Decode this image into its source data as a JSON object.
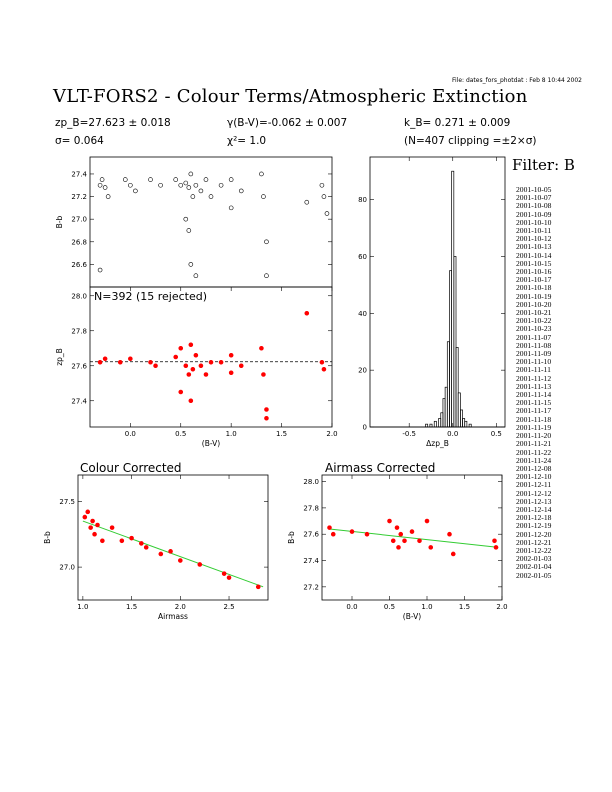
{
  "file_label": "File: dates_fors_photdat : Feb  8 10:44 2002",
  "title": "VLT-FORS2 - Colour Terms/Atmospheric Extinction",
  "header": {
    "zp": "zp_B=27.623 ± 0.018",
    "sigma": "σ= 0.064",
    "gamma": "γ(B-V)=-0.062 ± 0.007",
    "chi2": "χ²=   1.0",
    "kb": "k_B= 0.271 ± 0.009",
    "clip": "(N=407 clipping =±2×σ)"
  },
  "filter_label": "Filter: B",
  "dates": [
    "2001-10-05",
    "2001-10-07",
    "2001-10-08",
    "2001-10-09",
    "2001-10-10",
    "2001-10-11",
    "2001-10-12",
    "2001-10-13",
    "2001-10-14",
    "2001-10-15",
    "2001-10-16",
    "2001-10-17",
    "2001-10-18",
    "2001-10-19",
    "2001-10-20",
    "2001-10-21",
    "2001-10-22",
    "2001-10-23",
    "2001-11-07",
    "2001-11-08",
    "2001-11-09",
    "2001-11-10",
    "2001-11-11",
    "2001-11-12",
    "2001-11-13",
    "2001-11-14",
    "2001-11-15",
    "2001-11-17",
    "2001-11-18",
    "2001-11-19",
    "2001-11-20",
    "2001-11-21",
    "2001-11-22",
    "2001-11-24",
    "2001-12-08",
    "2001-12-10",
    "2001-12-11",
    "2001-12-12",
    "2001-12-13",
    "2001-12-14",
    "2001-12-18",
    "2001-12-19",
    "2001-12-20",
    "2001-12-21",
    "2001-12-22",
    "2002-01-03",
    "2002-01-04",
    "2002-01-05"
  ],
  "chart_data": [
    {
      "type": "scatter",
      "xlabel": "",
      "ylabel": "B-b",
      "xlim": [
        -0.4,
        2.0
      ],
      "ylim": [
        26.4,
        27.55
      ],
      "yticks": [
        26.6,
        26.8,
        27.0,
        27.2,
        27.4
      ],
      "series": [
        {
          "color": "#000000",
          "marker": "open-circle/triangle",
          "points": [
            [
              -0.3,
              27.3
            ],
            [
              -0.28,
              27.35
            ],
            [
              -0.25,
              27.28
            ],
            [
              -0.22,
              27.2
            ],
            [
              -0.3,
              26.55
            ],
            [
              -0.05,
              27.35
            ],
            [
              0.0,
              27.3
            ],
            [
              0.05,
              27.25
            ],
            [
              0.2,
              27.35
            ],
            [
              0.3,
              27.3
            ],
            [
              0.45,
              27.35
            ],
            [
              0.5,
              27.3
            ],
            [
              0.55,
              27.32
            ],
            [
              0.58,
              27.28
            ],
            [
              0.6,
              27.4
            ],
            [
              0.62,
              27.2
            ],
            [
              0.65,
              27.3
            ],
            [
              0.7,
              27.25
            ],
            [
              0.75,
              27.35
            ],
            [
              0.8,
              27.2
            ],
            [
              0.55,
              27.0
            ],
            [
              0.58,
              26.9
            ],
            [
              0.6,
              26.6
            ],
            [
              0.65,
              26.5
            ],
            [
              0.9,
              27.3
            ],
            [
              1.0,
              27.35
            ],
            [
              1.0,
              27.1
            ],
            [
              1.1,
              27.25
            ],
            [
              1.3,
              27.4
            ],
            [
              1.32,
              27.2
            ],
            [
              1.35,
              26.8
            ],
            [
              1.35,
              26.5
            ],
            [
              1.75,
              27.15
            ],
            [
              1.9,
              27.3
            ],
            [
              1.92,
              27.2
            ],
            [
              1.95,
              27.05
            ]
          ]
        }
      ]
    },
    {
      "type": "scatter",
      "label": "N=392 (15 rejected)",
      "xlabel": "(B-V)",
      "ylabel": "zp_B",
      "xlim": [
        -0.4,
        2.0
      ],
      "ylim": [
        27.25,
        28.05
      ],
      "xticks": [
        0.0,
        0.5,
        1.0,
        1.5,
        2.0
      ],
      "yticks": [
        27.4,
        27.6,
        27.8,
        28.0
      ],
      "reference_line": 27.623,
      "series": [
        {
          "color": "#ff0000",
          "points": [
            [
              -0.3,
              27.62
            ],
            [
              -0.25,
              27.64
            ],
            [
              -0.1,
              27.62
            ],
            [
              0.0,
              27.64
            ],
            [
              0.2,
              27.62
            ],
            [
              0.25,
              27.6
            ],
            [
              0.45,
              27.65
            ],
            [
              0.5,
              27.7
            ],
            [
              0.55,
              27.6
            ],
            [
              0.58,
              27.55
            ],
            [
              0.6,
              27.72
            ],
            [
              0.62,
              27.58
            ],
            [
              0.65,
              27.66
            ],
            [
              0.7,
              27.6
            ],
            [
              0.75,
              27.55
            ],
            [
              0.8,
              27.62
            ],
            [
              0.5,
              27.45
            ],
            [
              0.6,
              27.4
            ],
            [
              0.9,
              27.62
            ],
            [
              1.0,
              27.66
            ],
            [
              1.0,
              27.56
            ],
            [
              1.1,
              27.6
            ],
            [
              1.3,
              27.7
            ],
            [
              1.32,
              27.55
            ],
            [
              1.35,
              27.35
            ],
            [
              1.35,
              27.3
            ],
            [
              1.75,
              27.9
            ],
            [
              1.9,
              27.62
            ],
            [
              1.92,
              27.58
            ]
          ]
        }
      ]
    },
    {
      "type": "bar",
      "xlabel": "Δzp_B",
      "ylabel": "",
      "xlim": [
        -0.95,
        0.6
      ],
      "ylim": [
        0,
        95
      ],
      "xticks": [
        -0.5,
        0.0,
        0.5
      ],
      "yticks": [
        0,
        20,
        40,
        60,
        80
      ],
      "bin_centers": [
        -0.3,
        -0.25,
        -0.2,
        -0.15,
        -0.125,
        -0.1,
        -0.075,
        -0.05,
        -0.025,
        0.0,
        0.025,
        0.05,
        0.075,
        0.1,
        0.125,
        0.15,
        0.2
      ],
      "values": [
        1,
        1,
        2,
        3,
        5,
        10,
        14,
        30,
        55,
        90,
        60,
        28,
        12,
        6,
        3,
        2,
        1
      ]
    },
    {
      "type": "scatter",
      "title": "Colour Corrected",
      "xlabel": "Airmass",
      "ylabel": "B-b",
      "xlim": [
        0.95,
        2.9
      ],
      "ylim": [
        26.75,
        27.7
      ],
      "xticks": [
        1.0,
        1.5,
        2.0,
        2.5
      ],
      "yticks": [
        27.0,
        27.5
      ],
      "fit": [
        [
          1.0,
          27.35
        ],
        [
          2.85,
          26.85
        ]
      ],
      "series": [
        {
          "color": "#ff0000",
          "points": [
            [
              1.02,
              27.38
            ],
            [
              1.05,
              27.42
            ],
            [
              1.08,
              27.3
            ],
            [
              1.1,
              27.35
            ],
            [
              1.12,
              27.25
            ],
            [
              1.15,
              27.32
            ],
            [
              1.2,
              27.2
            ],
            [
              1.3,
              27.3
            ],
            [
              1.4,
              27.2
            ],
            [
              1.5,
              27.22
            ],
            [
              1.6,
              27.18
            ],
            [
              1.65,
              27.15
            ],
            [
              1.8,
              27.1
            ],
            [
              1.9,
              27.12
            ],
            [
              2.0,
              27.05
            ],
            [
              2.2,
              27.02
            ],
            [
              2.45,
              26.95
            ],
            [
              2.5,
              26.92
            ],
            [
              2.8,
              26.85
            ]
          ]
        }
      ]
    },
    {
      "type": "scatter",
      "title": "Airmass Corrected",
      "xlabel": "(B-V)",
      "ylabel": "B-b",
      "xlim": [
        -0.4,
        2.0
      ],
      "ylim": [
        27.1,
        28.05
      ],
      "xticks": [
        0.0,
        0.5,
        1.0,
        1.5,
        2.0
      ],
      "yticks": [
        27.2,
        27.4,
        27.6,
        27.8,
        28.0
      ],
      "fit": [
        [
          -0.3,
          27.64
        ],
        [
          1.95,
          27.5
        ]
      ],
      "series": [
        {
          "color": "#ff0000",
          "points": [
            [
              -0.3,
              27.65
            ],
            [
              -0.25,
              27.6
            ],
            [
              0.0,
              27.62
            ],
            [
              0.2,
              27.6
            ],
            [
              0.5,
              27.7
            ],
            [
              0.55,
              27.55
            ],
            [
              0.6,
              27.65
            ],
            [
              0.62,
              27.5
            ],
            [
              0.65,
              27.6
            ],
            [
              0.7,
              27.55
            ],
            [
              0.8,
              27.62
            ],
            [
              0.9,
              27.55
            ],
            [
              1.0,
              27.7
            ],
            [
              1.05,
              27.5
            ],
            [
              1.3,
              27.6
            ],
            [
              1.35,
              27.45
            ],
            [
              1.9,
              27.55
            ],
            [
              1.92,
              27.5
            ]
          ]
        }
      ]
    }
  ]
}
